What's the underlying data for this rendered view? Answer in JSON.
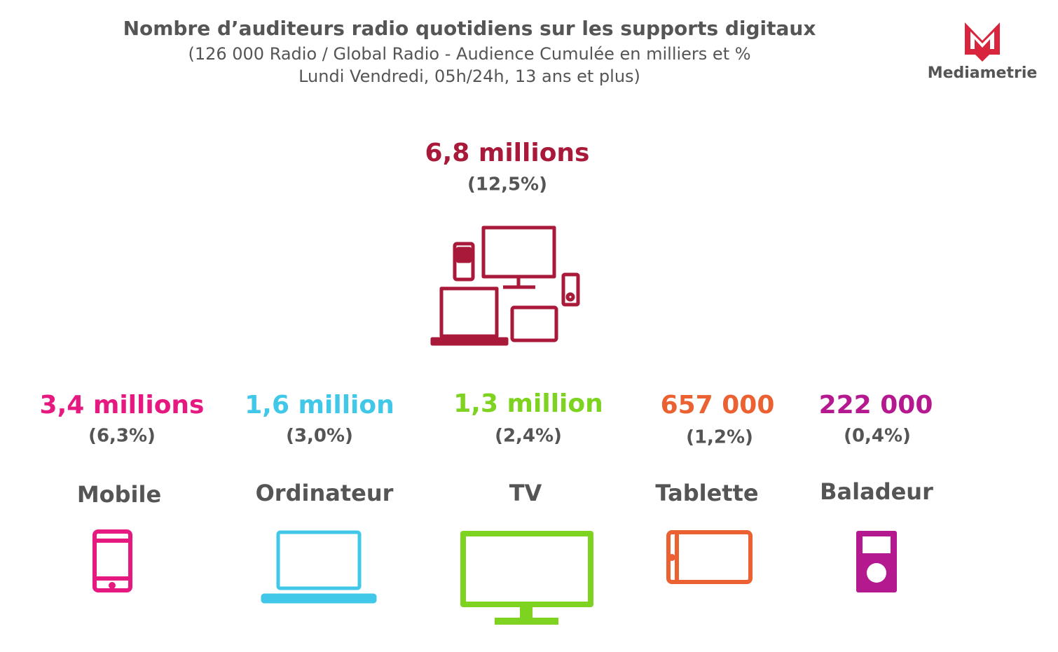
{
  "header": {
    "title": "Nombre d’auditeurs radio quotidiens sur les supports digitaux",
    "subtitle": [
      "(126 000 Radio / Global Radio - Audience Cumulée en milliers et %",
      "Lundi Vendredi, 05h/24h, 13 ans et plus)"
    ],
    "logo": "Mediametrie"
  },
  "total": {
    "value": "6,8 millions",
    "share": "(12,5%)"
  },
  "devices": [
    {
      "value": "3,4 millions",
      "share": "(6,3%)",
      "label": "Mobile"
    },
    {
      "value": "1,6 million",
      "share": "(3,0%)",
      "label": "Ordinateur"
    },
    {
      "value": "1,3 million",
      "share": "(2,4%)",
      "label": "TV"
    },
    {
      "value": "657 000",
      "share": "(1,2%)",
      "label": "Tablette"
    },
    {
      "value": "222 000",
      "share": "(0,4%)",
      "label": "Baladeur"
    }
  ]
}
